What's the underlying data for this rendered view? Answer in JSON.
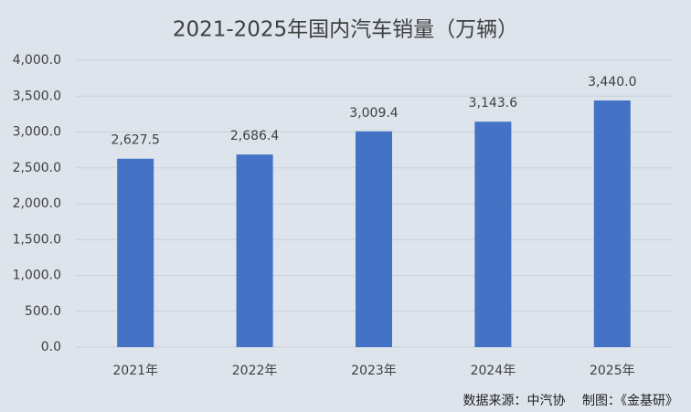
{
  "chart_data": {
    "type": "bar",
    "title": "2021-2025年国内汽车销量（万辆）",
    "categories": [
      "2021年",
      "2022年",
      "2023年",
      "2024年",
      "2025年"
    ],
    "values": [
      2627.5,
      2686.4,
      3009.4,
      3143.6,
      3440.0
    ],
    "value_labels": [
      "2,627.5",
      "2,686.4",
      "3,009.4",
      "3,143.6",
      "3,440.0"
    ],
    "color": "#4472c4",
    "ylim": [
      0,
      4000
    ],
    "yticks": [
      {
        "value": 0,
        "label": "0.0"
      },
      {
        "value": 500,
        "label": "500.0"
      },
      {
        "value": 1000,
        "label": "1,000.0"
      },
      {
        "value": 1500,
        "label": "1,500.0"
      },
      {
        "value": 2000,
        "label": "2,000.0"
      },
      {
        "value": 2500,
        "label": "2,500.0"
      },
      {
        "value": 3000,
        "label": "3,000.0"
      },
      {
        "value": 3500,
        "label": "3,500.0"
      },
      {
        "value": 4000,
        "label": "4,000.0"
      }
    ],
    "grid": true,
    "source": "数据来源：中汽协　 制图：《金基研》"
  }
}
